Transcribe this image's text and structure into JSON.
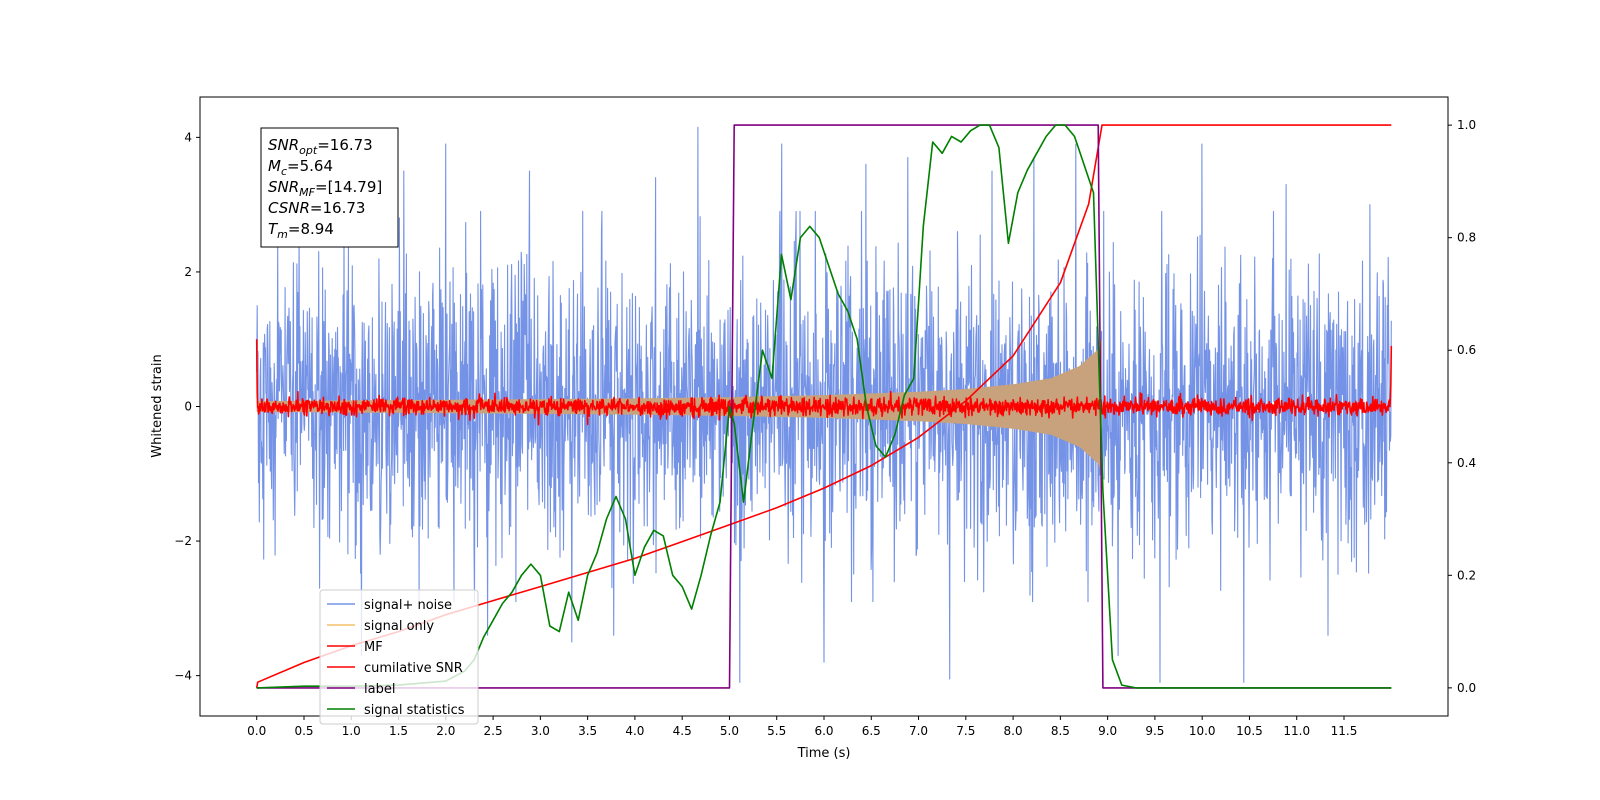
{
  "chart_data": {
    "type": "line",
    "xlabel": "Time (s)",
    "ylabel": "Whitened strain",
    "xlim": [
      -0.6,
      12.6
    ],
    "ylim": [
      -4.6,
      4.6
    ],
    "ylim_right": [
      -0.05,
      1.05
    ],
    "x_ticks": [
      "0.0",
      "0.5",
      "1.0",
      "1.5",
      "2.0",
      "2.5",
      "3.0",
      "3.5",
      "4.0",
      "4.5",
      "5.0",
      "5.5",
      "6.0",
      "6.5",
      "7.0",
      "7.5",
      "8.0",
      "8.5",
      "9.0",
      "9.5",
      "10.0",
      "10.5",
      "11.0",
      "11.5"
    ],
    "y_ticks_left": [
      "−4",
      "−2",
      "0",
      "2",
      "4"
    ],
    "y_ticks_right": [
      "0.0",
      "0.2",
      "0.4",
      "0.6",
      "0.8",
      "1.0"
    ],
    "grid": false,
    "legend_position": "lower-left",
    "annotation": {
      "lines": [
        {
          "var": "SNR",
          "sub": "opt",
          "value": "=16.73"
        },
        {
          "var": "M",
          "sub": "c",
          "value": "=5.64"
        },
        {
          "var": "SNR",
          "sub": "MF",
          "value": "=[14.79]"
        },
        {
          "var": "CSNR",
          "sub": "",
          "value": "=16.73"
        },
        {
          "var": "T",
          "sub": "m",
          "value": "=8.94"
        }
      ]
    },
    "series": [
      {
        "name": "signal+ noise",
        "color": "#7593e6",
        "axis": "left",
        "kind": "noise_band",
        "x_range": [
          0,
          12
        ],
        "amplitude_typical": 2.6,
        "peak_values": [
          2.5,
          -2.7,
          -3.7,
          3.5,
          3.9,
          -3.4,
          3.5,
          -3.5,
          -3.4,
          3.4,
          4.15,
          -4.1,
          3.9,
          -3.8,
          3.6,
          3.7,
          -4.05,
          3.5,
          3.7,
          3.9,
          -3.7,
          -4.1,
          3.9,
          -4.1,
          3.3,
          -3.4,
          3.0
        ]
      },
      {
        "name": "signal only",
        "color": "#f5c26b",
        "fill_color": "#c8a27c",
        "axis": "left",
        "kind": "chirp_envelope",
        "x": [
          0,
          1,
          2,
          3,
          4,
          5,
          6,
          7,
          7.5,
          8,
          8.4,
          8.7,
          8.9,
          8.94
        ],
        "envelope": [
          0.08,
          0.09,
          0.1,
          0.11,
          0.12,
          0.14,
          0.17,
          0.22,
          0.26,
          0.33,
          0.42,
          0.6,
          0.85,
          1.0
        ]
      },
      {
        "name": "MF",
        "color": "#ff0000",
        "axis": "left",
        "kind": "noise_line",
        "x_range": [
          0,
          12
        ],
        "amplitude": 0.12,
        "start_value": 1.0,
        "end_value": 0.9
      },
      {
        "name": "cumilative SNR",
        "color": "#ff0000",
        "axis": "right",
        "x": [
          0,
          0.01,
          0.5,
          1.0,
          1.5,
          2.0,
          2.5,
          3.0,
          3.5,
          4.0,
          4.5,
          5.0,
          5.5,
          6.0,
          6.5,
          7.0,
          7.5,
          8.0,
          8.5,
          8.8,
          8.94,
          9.0,
          12.0
        ],
        "y": [
          0.0,
          0.01,
          0.045,
          0.075,
          0.1,
          0.13,
          0.155,
          0.18,
          0.205,
          0.23,
          0.26,
          0.29,
          0.32,
          0.355,
          0.395,
          0.445,
          0.51,
          0.59,
          0.72,
          0.86,
          1.0,
          1.0,
          1.0
        ]
      },
      {
        "name": "label",
        "color": "#800080",
        "axis": "right",
        "x": [
          0,
          5.0,
          5.05,
          8.9,
          8.95,
          12.0
        ],
        "y": [
          0,
          0,
          1,
          1,
          0,
          0
        ]
      },
      {
        "name": "signal statistics",
        "color": "#008000",
        "axis": "right",
        "x": [
          0,
          0.5,
          1.0,
          1.5,
          2.0,
          2.2,
          2.3,
          2.4,
          2.5,
          2.6,
          2.7,
          2.8,
          2.9,
          3.0,
          3.1,
          3.2,
          3.3,
          3.4,
          3.5,
          3.6,
          3.7,
          3.8,
          3.9,
          4.0,
          4.1,
          4.2,
          4.3,
          4.4,
          4.5,
          4.6,
          4.7,
          4.8,
          4.9,
          5.0,
          5.05,
          5.15,
          5.25,
          5.35,
          5.45,
          5.55,
          5.65,
          5.75,
          5.85,
          5.95,
          6.05,
          6.15,
          6.25,
          6.35,
          6.45,
          6.55,
          6.65,
          6.75,
          6.85,
          6.95,
          7.05,
          7.15,
          7.25,
          7.35,
          7.45,
          7.55,
          7.65,
          7.75,
          7.85,
          7.95,
          8.05,
          8.15,
          8.25,
          8.35,
          8.45,
          8.55,
          8.65,
          8.75,
          8.85,
          8.95,
          9.05,
          9.15,
          9.3,
          12.0
        ],
        "y": [
          0.0,
          0.003,
          0.003,
          0.005,
          0.012,
          0.03,
          0.05,
          0.09,
          0.12,
          0.15,
          0.17,
          0.2,
          0.22,
          0.2,
          0.11,
          0.1,
          0.17,
          0.12,
          0.2,
          0.24,
          0.3,
          0.34,
          0.3,
          0.2,
          0.25,
          0.28,
          0.27,
          0.2,
          0.18,
          0.14,
          0.2,
          0.27,
          0.33,
          0.5,
          0.47,
          0.33,
          0.47,
          0.6,
          0.55,
          0.77,
          0.69,
          0.8,
          0.82,
          0.8,
          0.75,
          0.7,
          0.67,
          0.62,
          0.5,
          0.43,
          0.41,
          0.45,
          0.52,
          0.55,
          0.82,
          0.97,
          0.95,
          0.98,
          0.97,
          0.99,
          1.0,
          1.0,
          0.96,
          0.79,
          0.88,
          0.92,
          0.95,
          0.98,
          1.0,
          1.0,
          0.98,
          0.93,
          0.88,
          0.35,
          0.05,
          0.005,
          0.0,
          0.0
        ]
      }
    ]
  }
}
